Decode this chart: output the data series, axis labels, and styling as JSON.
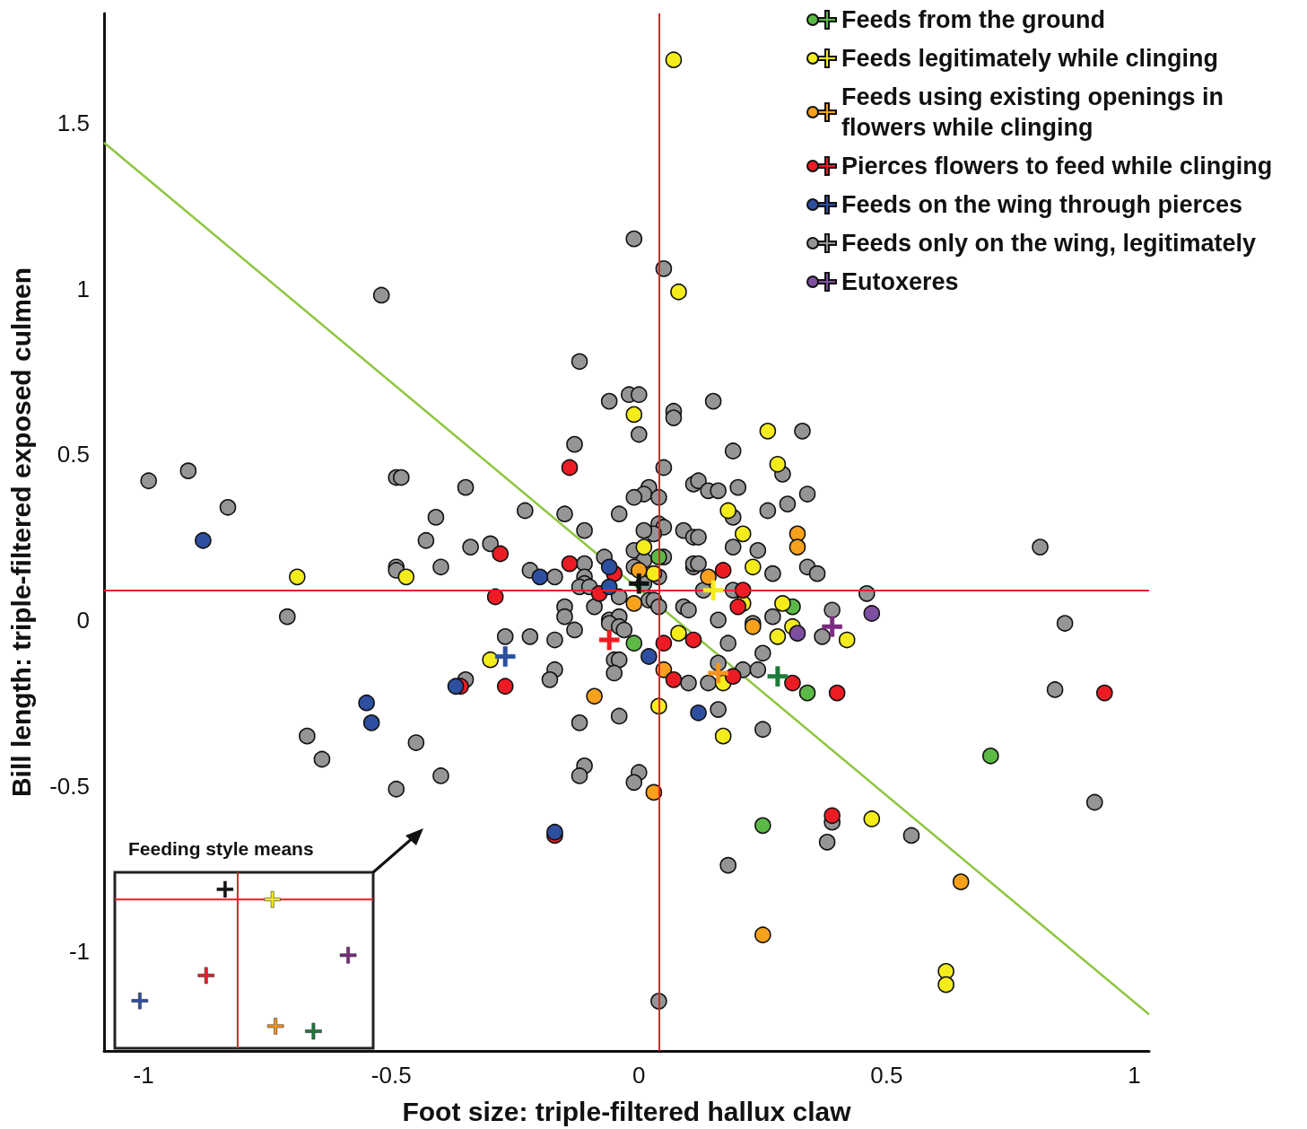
{
  "chart_data": [
    {
      "type": "scatter",
      "xlabel": "Foot size: triple-filtered hallux claw",
      "ylabel": "Bill length: triple-filtered exposed culmen",
      "xlim": [
        -1.08,
        1.03
      ],
      "ylim": [
        -1.3,
        1.83
      ],
      "xticks": [
        -1,
        -0.5,
        0,
        0.5,
        1
      ],
      "yticks": [
        -1,
        -0.5,
        0,
        0.5,
        1,
        1.5
      ],
      "marker": "circle",
      "legend": "top right",
      "ref_lines": [
        {
          "axis": "x",
          "value": 0.04,
          "color": "#ed1c24"
        },
        {
          "axis": "y",
          "value": 0.09,
          "color": "#ed1c24"
        }
      ],
      "series": [
        {
          "type": "line",
          "marker": "none",
          "color": "#8dc63f",
          "x": [
            -1.08,
            1.03
          ],
          "values": [
            1.44,
            -1.19
          ]
        },
        {
          "name": "Feeds from the ground",
          "color": "#5cb946",
          "x": [
            0.04,
            -0.01,
            0.31,
            0.34,
            0.71,
            0.25
          ],
          "values": [
            0.19,
            -0.07,
            0.04,
            -0.22,
            -0.41,
            -0.62
          ]
        },
        {
          "name": "Feeds legitimately while clinging",
          "color": "#f5ec1c",
          "x": [
            0.07,
            0.08,
            -0.01,
            0.26,
            0.28,
            0.18,
            0.21,
            0.23,
            0.29,
            0.21,
            -0.69,
            -0.47,
            0.01,
            0.03,
            -0.3,
            0.08,
            0.04,
            0.28,
            0.31,
            0.42,
            0.17,
            0.17,
            0.47,
            0.62,
            0.62
          ],
          "values": [
            1.69,
            0.99,
            0.62,
            0.57,
            0.47,
            0.33,
            0.26,
            0.16,
            0.05,
            0.05,
            0.13,
            0.13,
            0.22,
            0.14,
            -0.12,
            -0.04,
            -0.26,
            -0.05,
            -0.02,
            -0.06,
            -0.19,
            -0.35,
            -0.6,
            -1.06,
            -1.1
          ]
        },
        {
          "name": "Feeds using existing openings in flowers while clinging",
          "color": "#f7a11c",
          "x": [
            0.0,
            -0.01,
            0.14,
            0.32,
            0.32,
            -0.09,
            0.05,
            0.03,
            0.23,
            0.65,
            0.25
          ],
          "values": [
            0.15,
            0.05,
            0.13,
            0.26,
            0.22,
            -0.23,
            -0.15,
            -0.52,
            -0.02,
            -0.79,
            -0.95
          ]
        },
        {
          "name": "Pierces flowers to feed while clinging",
          "color": "#ed1c24",
          "x": [
            -0.14,
            -0.28,
            -0.14,
            -0.05,
            -0.08,
            -0.29,
            0.17,
            0.21,
            0.2,
            -0.27,
            0.05,
            0.07,
            0.11,
            -0.17,
            0.19,
            0.31,
            0.4,
            0.39,
            -0.36,
            0.94
          ],
          "values": [
            0.46,
            0.2,
            0.17,
            0.14,
            0.08,
            0.07,
            0.15,
            0.09,
            0.04,
            -0.2,
            -0.07,
            -0.18,
            -0.06,
            -0.65,
            -0.17,
            -0.19,
            -0.22,
            -0.59,
            -0.2,
            -0.22
          ]
        },
        {
          "name": "Feeds on the wing through pierces",
          "color": "#2e4fa0",
          "x": [
            -0.88,
            -0.55,
            -0.54,
            -0.37,
            -0.2,
            -0.06,
            -0.06,
            0.02,
            -0.17,
            0.12
          ],
          "values": [
            0.24,
            -0.25,
            -0.31,
            -0.2,
            0.13,
            0.16,
            0.1,
            -0.11,
            -0.64,
            -0.28
          ]
        },
        {
          "name": "Feeds only on the wing, legitimately",
          "color": "#959595",
          "x": [
            -0.01,
            0.05,
            -0.52,
            -0.12,
            -0.02,
            0.0,
            -0.06,
            0.07,
            0.07,
            0.15,
            0.33,
            0.0,
            -0.13,
            0.05,
            0.19,
            0.29,
            -0.99,
            -0.91,
            -0.83,
            -0.49,
            -0.48,
            -0.35,
            -0.41,
            -0.43,
            -0.34,
            -0.4,
            -0.49,
            -0.49,
            -0.3,
            -0.23,
            -0.15,
            -0.22,
            -0.11,
            -0.04,
            0.02,
            0.01,
            0.04,
            -0.01,
            0.04,
            0.11,
            0.05,
            0.03,
            0.01,
            0.09,
            -0.17,
            -0.07,
            -0.11,
            -0.11,
            -0.11,
            -0.12,
            -0.1,
            -0.09,
            -0.15,
            -0.15,
            -0.04,
            -0.01,
            0.01,
            -0.01,
            0.04,
            0.05,
            0.11,
            0.11,
            0.11,
            0.09,
            0.1,
            0.02,
            0.03,
            -0.06,
            -0.04,
            0.12,
            0.14,
            0.16,
            0.2,
            0.34,
            0.3,
            0.26,
            0.19,
            0.19,
            0.24,
            0.12,
            0.27,
            0.34,
            0.36,
            0.19,
            0.12,
            0.46,
            0.39,
            0.27,
            0.16,
            0.23,
            0.13,
            -0.22,
            -0.17,
            -0.13,
            -0.06,
            -0.04,
            -0.03,
            -0.05,
            -0.04,
            -0.05,
            -0.17,
            -0.18,
            -0.04,
            -0.12,
            -0.11,
            -0.12,
            0.0,
            -0.01,
            0.1,
            0.18,
            0.25,
            0.16,
            0.21,
            0.24,
            0.14,
            0.16,
            0.25,
            0.37,
            0.39,
            0.38,
            0.55,
            -0.71,
            -0.35,
            -0.67,
            -0.64,
            -0.45,
            -0.4,
            -0.49,
            -0.27,
            0.18,
            0.04,
            0.81,
            0.86,
            0.84,
            0.92,
            0.04,
            0.01
          ],
          "values": [
            1.15,
            1.06,
            0.98,
            0.78,
            0.68,
            0.68,
            0.66,
            0.63,
            0.61,
            0.66,
            0.57,
            0.56,
            0.53,
            0.46,
            0.51,
            0.44,
            0.42,
            0.45,
            0.34,
            0.43,
            0.43,
            0.4,
            0.31,
            0.24,
            0.22,
            0.16,
            0.16,
            0.15,
            0.23,
            0.33,
            0.32,
            0.15,
            0.27,
            0.32,
            0.4,
            0.38,
            0.37,
            0.37,
            0.29,
            0.41,
            0.28,
            0.26,
            0.27,
            0.27,
            0.13,
            0.19,
            0.17,
            0.13,
            0.11,
            0.1,
            0.1,
            0.04,
            0.04,
            0.01,
            0.07,
            0.21,
            0.18,
            0.16,
            0.13,
            0.19,
            0.16,
            0.17,
            0.25,
            0.04,
            0.03,
            0.06,
            0.06,
            0.0,
            0.01,
            0.42,
            0.39,
            0.39,
            0.4,
            0.38,
            0.35,
            0.33,
            0.31,
            0.22,
            0.21,
            0.25,
            0.14,
            0.16,
            0.14,
            0.09,
            0.17,
            0.08,
            0.03,
            0.01,
            0.0,
            -0.01,
            0.09,
            -0.05,
            -0.06,
            -0.03,
            -0.01,
            -0.02,
            -0.03,
            -0.12,
            -0.12,
            -0.16,
            -0.15,
            -0.18,
            -0.29,
            -0.31,
            -0.44,
            -0.47,
            -0.46,
            -0.49,
            -0.19,
            -0.07,
            -0.1,
            -0.13,
            -0.15,
            -0.15,
            -0.19,
            -0.27,
            -0.33,
            -0.05,
            -0.61,
            -0.67,
            -0.65,
            0.01,
            -0.18,
            -0.35,
            -0.42,
            -0.37,
            -0.47,
            -0.51,
            -0.05,
            -0.74,
            -1.15,
            0.22,
            -0.01,
            -0.21,
            -0.55,
            0.04,
            0.11
          ]
        },
        {
          "name": "Eutoxeres",
          "color": "#7e4fa0",
          "x": [
            0.47,
            0.32
          ],
          "values": [
            0.02,
            -0.04
          ]
        },
        {
          "marker": "cross",
          "color": "#1e7a3c",
          "x": [
            0.28
          ],
          "values": [
            -0.17
          ]
        },
        {
          "marker": "cross",
          "color": "#f5ec1c",
          "x": [
            0.15
          ],
          "values": [
            0.09
          ]
        },
        {
          "marker": "cross",
          "color": "#f7941d",
          "x": [
            0.16
          ],
          "values": [
            -0.16
          ]
        },
        {
          "marker": "cross",
          "color": "#ed1c24",
          "x": [
            -0.06
          ],
          "values": [
            -0.06
          ]
        },
        {
          "marker": "cross",
          "color": "#2e4fa0",
          "x": [
            -0.27
          ],
          "values": [
            -0.11
          ]
        },
        {
          "marker": "cross",
          "color": "#111111",
          "x": [
            0.0
          ],
          "values": [
            0.11
          ]
        },
        {
          "marker": "cross",
          "color": "#7b2a82",
          "x": [
            0.39
          ],
          "values": [
            -0.02
          ]
        }
      ]
    },
    {
      "type": "other",
      "title": "Feeding style means"
    }
  ]
}
